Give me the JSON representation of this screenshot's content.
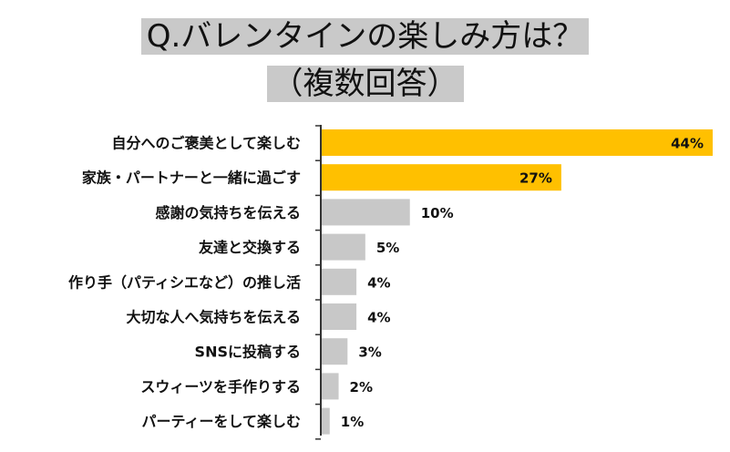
{
  "title_line1": "Q.バレンタインの楽しみ方は？",
  "title_line2": "（複数回答）",
  "colors": {
    "highlight": "#FFC000",
    "normal": "#C8C8C8",
    "axis": "#333333"
  },
  "chart_data": {
    "type": "bar",
    "orientation": "horizontal",
    "title": "Q.バレンタインの楽しみ方は？（複数回答）",
    "categories": [
      "自分へのご褒美として楽しむ",
      "家族・パートナーと一緒に過ごす",
      "感謝の気持ちを伝える",
      "友達と交換する",
      "作り手（パティシエなど）の推し活",
      "大切な人へ気持ちを伝える",
      "SNSに投稿する",
      "スウィーツを手作りする",
      "パーティーをして楽しむ"
    ],
    "values": [
      44,
      27,
      10,
      5,
      4,
      4,
      3,
      2,
      1
    ],
    "value_labels": [
      "44%",
      "27%",
      "10%",
      "5%",
      "4%",
      "4%",
      "3%",
      "2%",
      "1%"
    ],
    "highlighted": [
      true,
      true,
      false,
      false,
      false,
      false,
      false,
      false,
      false
    ],
    "xlim": [
      0,
      44
    ],
    "grid": false,
    "legend": "none"
  }
}
